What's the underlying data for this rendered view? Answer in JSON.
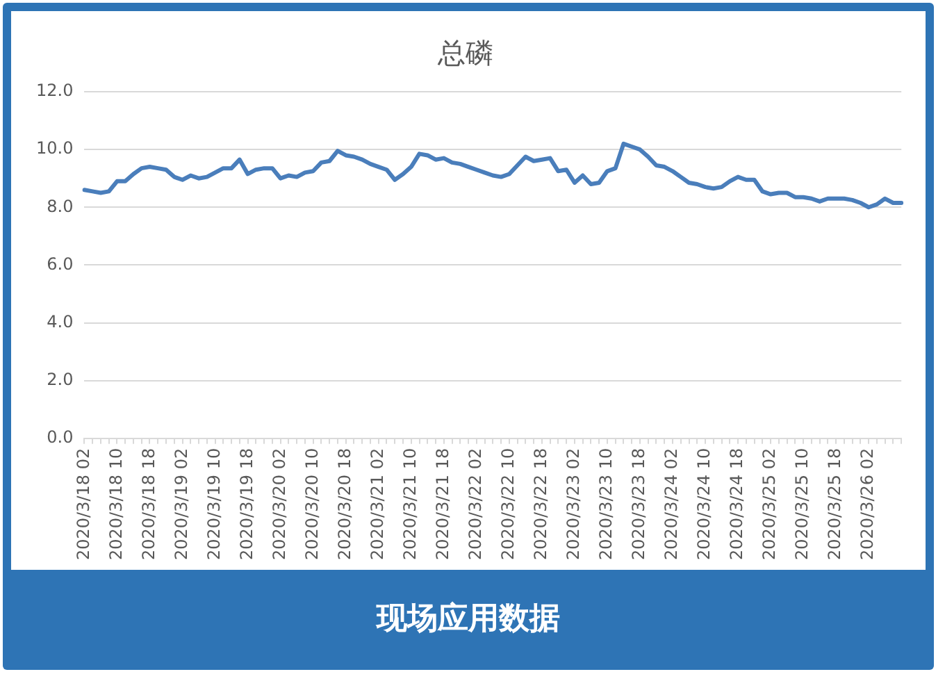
{
  "chart_data": {
    "type": "line",
    "title": "总磷",
    "categories": [
      "2020/3/18 02",
      null,
      null,
      null,
      "2020/3/18 10",
      null,
      null,
      null,
      "2020/3/18 18",
      null,
      null,
      null,
      "2020/3/19 02",
      null,
      null,
      null,
      "2020/3/19 10",
      null,
      null,
      null,
      "2020/3/19 18",
      null,
      null,
      null,
      "2020/3/20 02",
      null,
      null,
      null,
      "2020/3/20 10",
      null,
      null,
      null,
      "2020/3/20 18",
      null,
      null,
      null,
      "2020/3/21 02",
      null,
      null,
      null,
      "2020/3/21 10",
      null,
      null,
      null,
      "2020/3/21 18",
      null,
      null,
      null,
      "2020/3/22 02",
      null,
      null,
      null,
      "2020/3/22 10",
      null,
      null,
      null,
      "2020/3/22 18",
      null,
      null,
      null,
      "2020/3/23 02",
      null,
      null,
      null,
      "2020/3/23 10",
      null,
      null,
      null,
      "2020/3/23 18",
      null,
      null,
      null,
      "2020/3/24 02",
      null,
      null,
      null,
      "2020/3/24 10",
      null,
      null,
      null,
      "2020/3/24 18",
      null,
      null,
      null,
      "2020/3/25 02",
      null,
      null,
      null,
      "2020/3/25 10",
      null,
      null,
      null,
      "2020/3/25 18",
      null,
      null,
      null,
      "2020/3/26 02",
      null,
      null,
      null,
      null
    ],
    "series": [
      {
        "color": "#4a7ebb",
        "values": [
          8.6,
          8.55,
          8.5,
          8.55,
          8.9,
          8.9,
          9.15,
          9.35,
          9.4,
          9.35,
          9.3,
          9.05,
          8.95,
          9.1,
          9.0,
          9.05,
          9.2,
          9.35,
          9.35,
          9.65,
          9.15,
          9.3,
          9.35,
          9.35,
          9.0,
          9.1,
          9.05,
          9.2,
          9.25,
          9.55,
          9.6,
          9.95,
          9.8,
          9.75,
          9.65,
          9.5,
          9.4,
          9.3,
          8.95,
          9.15,
          9.4,
          9.85,
          9.8,
          9.65,
          9.7,
          9.55,
          9.5,
          9.4,
          9.3,
          9.2,
          9.1,
          9.05,
          9.15,
          9.45,
          9.75,
          9.6,
          9.65,
          9.7,
          9.25,
          9.3,
          8.85,
          9.1,
          8.8,
          8.85,
          9.25,
          9.35,
          10.2,
          10.1,
          10.0,
          9.75,
          9.45,
          9.4,
          9.25,
          9.05,
          8.85,
          8.8,
          8.7,
          8.65,
          8.7,
          8.9,
          9.05,
          8.95,
          8.95,
          8.55,
          8.45,
          8.5,
          8.5,
          8.35,
          8.35,
          8.3,
          8.2,
          8.3,
          8.3,
          8.3,
          8.25,
          8.15,
          8.0,
          8.1,
          8.3,
          8.15,
          8.15
        ]
      }
    ],
    "ylim": [
      0,
      12
    ],
    "yticks": [
      {
        "value": 0,
        "label": "0.0"
      },
      {
        "value": 2,
        "label": "2.0"
      },
      {
        "value": 4,
        "label": "4.0"
      },
      {
        "value": 6,
        "label": "6.0"
      },
      {
        "value": 8,
        "label": "8.0"
      },
      {
        "value": 10,
        "label": "10.0"
      },
      {
        "value": 12,
        "label": "12.0"
      }
    ],
    "grid": "y",
    "legend": false,
    "marker": "none",
    "line_style": "solid",
    "annotations": [
      "现场应用数据"
    ]
  }
}
